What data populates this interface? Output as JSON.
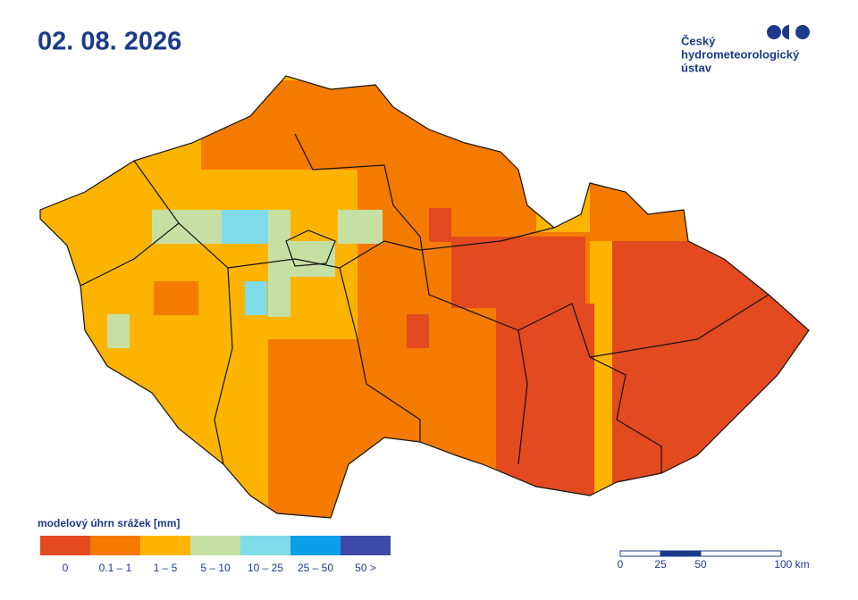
{
  "header": {
    "title": "02. 08. 2026",
    "logo_lines": [
      "Český",
      "hydrometeorologický",
      "ústav"
    ]
  },
  "legend": {
    "title": "modelový úhrn srážek [mm]",
    "items": [
      {
        "label": "0",
        "color": "#e34a1f"
      },
      {
        "label": "0.1 – 1",
        "color": "#f47b00"
      },
      {
        "label": "1 – 5",
        "color": "#fdb400"
      },
      {
        "label": "5 – 10",
        "color": "#c6e0a4"
      },
      {
        "label": "10 – 25",
        "color": "#7fdbe8"
      },
      {
        "label": "25 – 50",
        "color": "#0b9fe8"
      },
      {
        "label": "50 >",
        "color": "#3f4aa8"
      }
    ]
  },
  "scale_bar": {
    "ticks": [
      {
        "value": 0,
        "label": "0"
      },
      {
        "value": 25,
        "label": "25"
      },
      {
        "value": 50,
        "label": "50"
      },
      {
        "value": 100,
        "label": "100 km"
      }
    ]
  }
}
